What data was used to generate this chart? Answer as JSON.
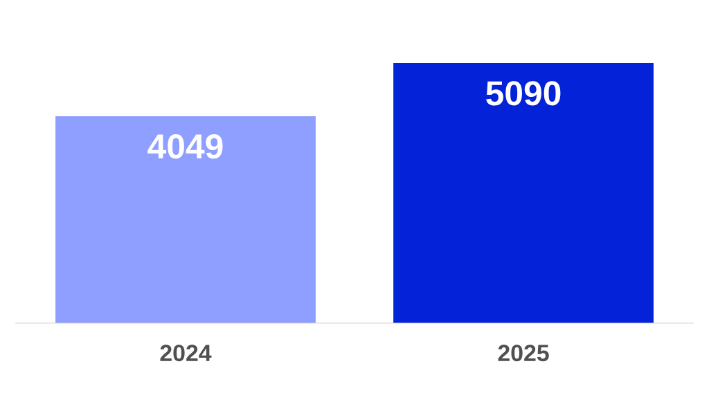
{
  "chart_data": {
    "type": "bar",
    "categories": [
      "2024",
      "2025"
    ],
    "values": [
      4049,
      5090
    ],
    "colors": [
      "#8f9fff",
      "#0422d8"
    ],
    "data_labels": true,
    "value_labels": [
      "4049",
      "5090"
    ]
  }
}
